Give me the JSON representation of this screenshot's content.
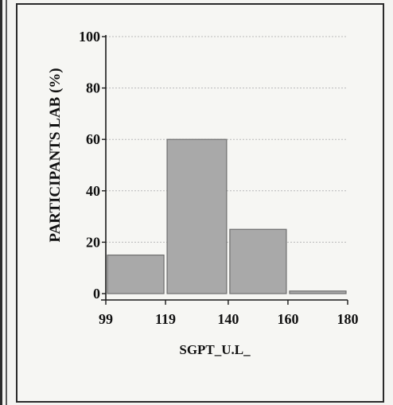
{
  "chart_data": {
    "type": "bar",
    "title": "",
    "xlabel": "SGPT_U.L_",
    "ylabel": "PARTICIPANTS LAB (%)",
    "x_ticks": [
      "99",
      "119",
      "140",
      "160",
      "180"
    ],
    "y_ticks": [
      "0",
      "20",
      "40",
      "60",
      "80",
      "100"
    ],
    "ylim": [
      0,
      100
    ],
    "bins": [
      {
        "from": 99,
        "to": 119,
        "value": 15
      },
      {
        "from": 119,
        "to": 140,
        "value": 60
      },
      {
        "from": 140,
        "to": 160,
        "value": 25
      },
      {
        "from": 160,
        "to": 180,
        "value": 1
      }
    ],
    "grid": true,
    "colors": {
      "bar_fill": "#a9a9a9",
      "bar_stroke": "#6e6e6e",
      "grid": "#b9b9b9",
      "axis": "#1a1a1a"
    }
  }
}
